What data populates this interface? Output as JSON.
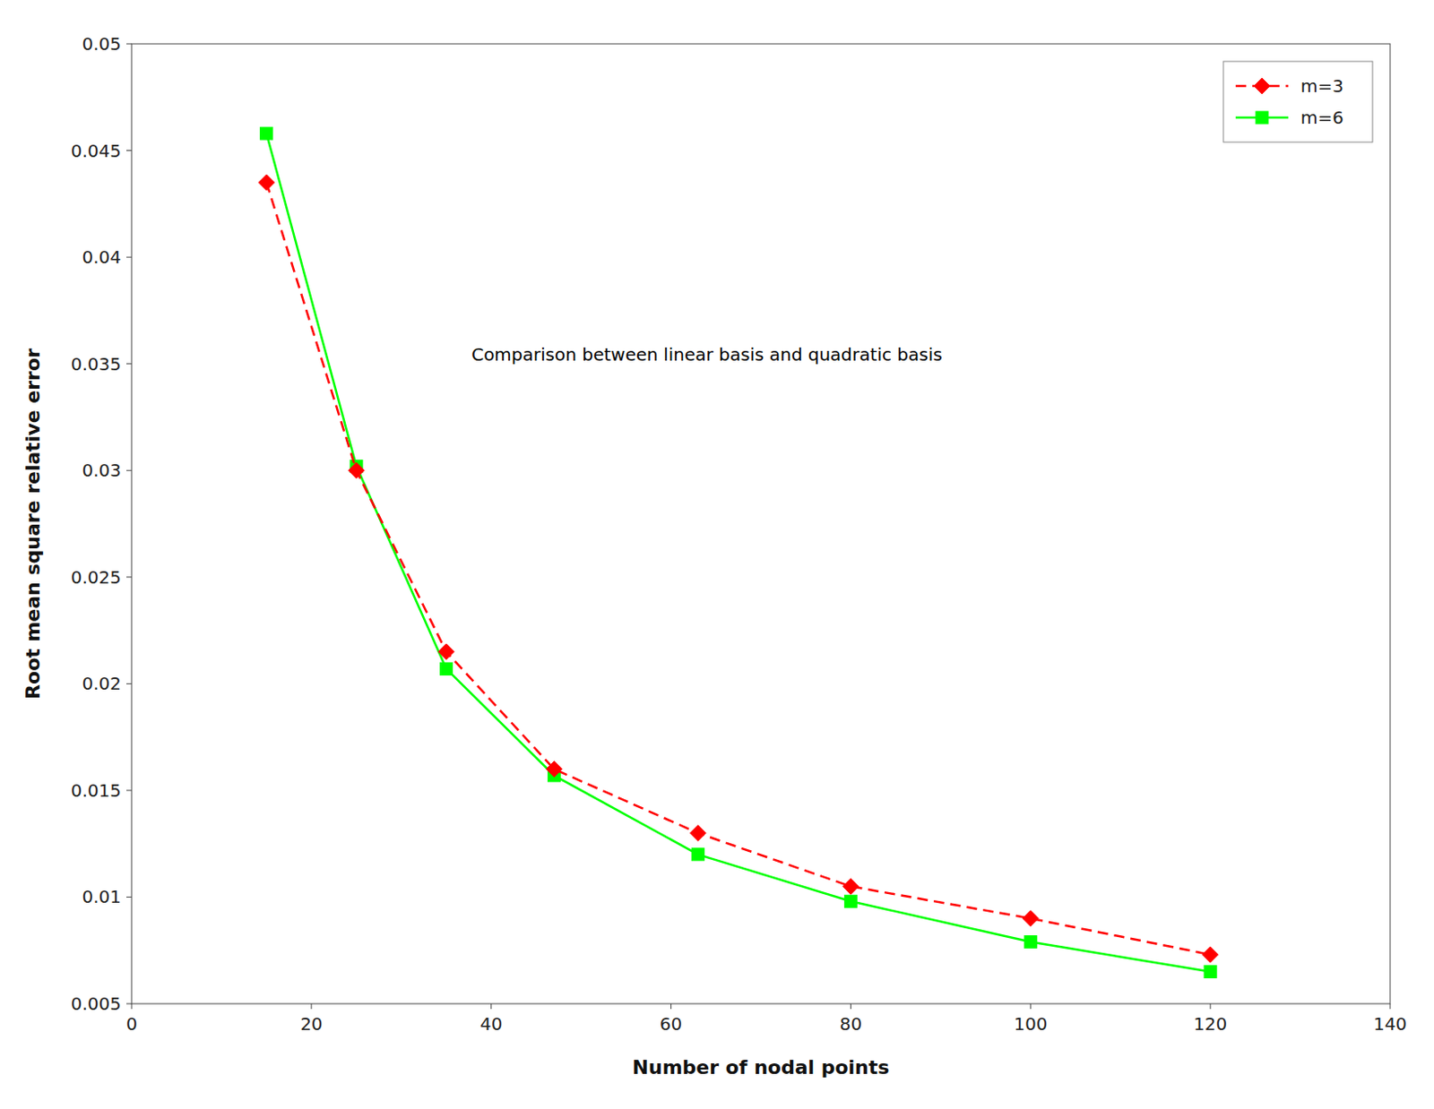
{
  "chart_data": {
    "type": "line",
    "xlabel": "Number of nodal points",
    "ylabel": "Root mean square relative error",
    "annotation": "Comparison between linear basis and quadratic basis",
    "x": [
      15,
      25,
      35,
      47,
      63,
      80,
      100,
      120
    ],
    "series": [
      {
        "name": "m=3",
        "color": "#FF0000",
        "marker": "diamond",
        "line_style": "dashed",
        "values": [
          0.0435,
          0.03,
          0.0215,
          0.016,
          0.013,
          0.0105,
          0.009,
          0.0073
        ]
      },
      {
        "name": "m=6",
        "color": "#00FF00",
        "marker": "square",
        "line_style": "solid",
        "values": [
          0.0458,
          0.0302,
          0.0207,
          0.0157,
          0.012,
          0.0098,
          0.0079,
          0.0065
        ]
      }
    ],
    "xlim": [
      0,
      140
    ],
    "ylim": [
      0.005,
      0.05
    ],
    "xticks": [
      0,
      20,
      40,
      60,
      80,
      100,
      120,
      140
    ],
    "yticks": [
      0.005,
      0.01,
      0.015,
      0.02,
      0.025,
      0.03,
      0.035,
      0.04,
      0.045,
      0.05
    ],
    "grid": false,
    "legend": "upper right"
  }
}
